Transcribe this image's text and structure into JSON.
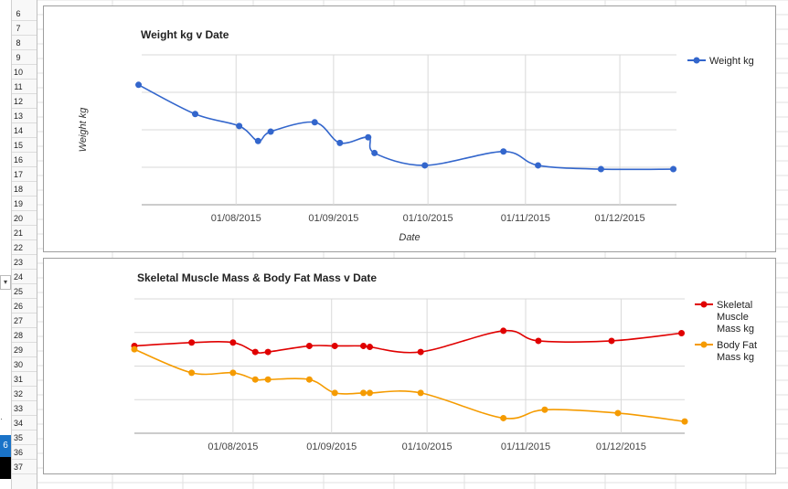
{
  "sheet": {
    "row_numbers": [
      "6",
      "7",
      "8",
      "9",
      "10",
      "11",
      "12",
      "13",
      "14",
      "15",
      "16",
      "17",
      "18",
      "19",
      "20",
      "21",
      "22",
      "23",
      "24",
      "25",
      "26",
      "27",
      "28",
      "29",
      "30",
      "31",
      "32",
      "33",
      "34",
      "35",
      "36",
      "37"
    ],
    "dropdown_glyph": "▾",
    "selected_cell_text": "6"
  },
  "chart_data": [
    {
      "type": "line",
      "title": "Weight kg v Date",
      "xlabel": "Date",
      "ylabel": "Weight kg",
      "x_tick_labels": [
        "01/08/2015",
        "01/09/2015",
        "01/10/2015",
        "01/11/2015",
        "01/12/2015"
      ],
      "x_ticks": [
        "2015-08-01",
        "2015-09-01",
        "2015-10-01",
        "2015-11-01",
        "2015-12-01"
      ],
      "xlim": [
        "2015-07-02",
        "2015-12-19"
      ],
      "ylim": [
        0,
        4
      ],
      "grid": true,
      "legend_position": "top-right",
      "colors": {
        "weight": "#3366cc"
      },
      "series": [
        {
          "name": "Weight kg",
          "points": [
            {
              "x": "2015-07-01",
              "y": 3.2
            },
            {
              "x": "2015-07-19",
              "y": 2.42
            },
            {
              "x": "2015-08-02",
              "y": 2.1
            },
            {
              "x": "2015-08-08",
              "y": 1.7
            },
            {
              "x": "2015-08-12",
              "y": 1.95
            },
            {
              "x": "2015-08-26",
              "y": 2.2
            },
            {
              "x": "2015-09-03",
              "y": 1.65
            },
            {
              "x": "2015-09-12",
              "y": 1.8
            },
            {
              "x": "2015-09-14",
              "y": 1.38
            },
            {
              "x": "2015-09-30",
              "y": 1.05
            },
            {
              "x": "2015-10-25",
              "y": 1.42
            },
            {
              "x": "2015-11-05",
              "y": 1.05
            },
            {
              "x": "2015-11-25",
              "y": 0.95
            },
            {
              "x": "2015-12-18",
              "y": 0.95
            }
          ]
        }
      ]
    },
    {
      "type": "line",
      "title": "Skeletal Muscle Mass & Body Fat Mass v Date",
      "x_tick_labels": [
        "01/08/2015",
        "01/09/2015",
        "01/10/2015",
        "01/11/2015",
        "01/12/2015"
      ],
      "x_ticks": [
        "2015-08-01",
        "2015-09-01",
        "2015-10-01",
        "2015-11-01",
        "2015-12-01"
      ],
      "xlim": [
        "2015-07-01",
        "2015-12-21"
      ],
      "ylim": [
        0,
        4
      ],
      "grid": true,
      "legend_position": "top-right",
      "colors": {
        "muscle": "#e00000",
        "fat": "#f59b00"
      },
      "series": [
        {
          "name": "Skeletal Muscle Mass kg",
          "legend_lines": [
            "Skeletal",
            "Muscle",
            "Mass kg"
          ],
          "points": [
            {
              "x": "2015-07-01",
              "y": 2.6
            },
            {
              "x": "2015-07-19",
              "y": 2.7
            },
            {
              "x": "2015-08-01",
              "y": 2.7
            },
            {
              "x": "2015-08-08",
              "y": 2.42
            },
            {
              "x": "2015-08-12",
              "y": 2.42
            },
            {
              "x": "2015-08-25",
              "y": 2.6
            },
            {
              "x": "2015-09-02",
              "y": 2.6
            },
            {
              "x": "2015-09-11",
              "y": 2.6
            },
            {
              "x": "2015-09-13",
              "y": 2.57
            },
            {
              "x": "2015-09-29",
              "y": 2.42
            },
            {
              "x": "2015-10-25",
              "y": 3.05
            },
            {
              "x": "2015-11-05",
              "y": 2.75
            },
            {
              "x": "2015-11-28",
              "y": 2.75
            },
            {
              "x": "2015-12-20",
              "y": 2.98
            }
          ]
        },
        {
          "name": "Body Fat Mass kg",
          "legend_lines": [
            "Body Fat",
            "Mass kg"
          ],
          "points": [
            {
              "x": "2015-07-01",
              "y": 2.5
            },
            {
              "x": "2015-07-19",
              "y": 1.8
            },
            {
              "x": "2015-08-01",
              "y": 1.8
            },
            {
              "x": "2015-08-08",
              "y": 1.6
            },
            {
              "x": "2015-08-12",
              "y": 1.6
            },
            {
              "x": "2015-08-25",
              "y": 1.6
            },
            {
              "x": "2015-09-02",
              "y": 1.2
            },
            {
              "x": "2015-09-11",
              "y": 1.2
            },
            {
              "x": "2015-09-13",
              "y": 1.2
            },
            {
              "x": "2015-09-29",
              "y": 1.2
            },
            {
              "x": "2015-10-25",
              "y": 0.45
            },
            {
              "x": "2015-11-07",
              "y": 0.7
            },
            {
              "x": "2015-11-30",
              "y": 0.6
            },
            {
              "x": "2015-12-21",
              "y": 0.35
            }
          ]
        }
      ]
    }
  ]
}
